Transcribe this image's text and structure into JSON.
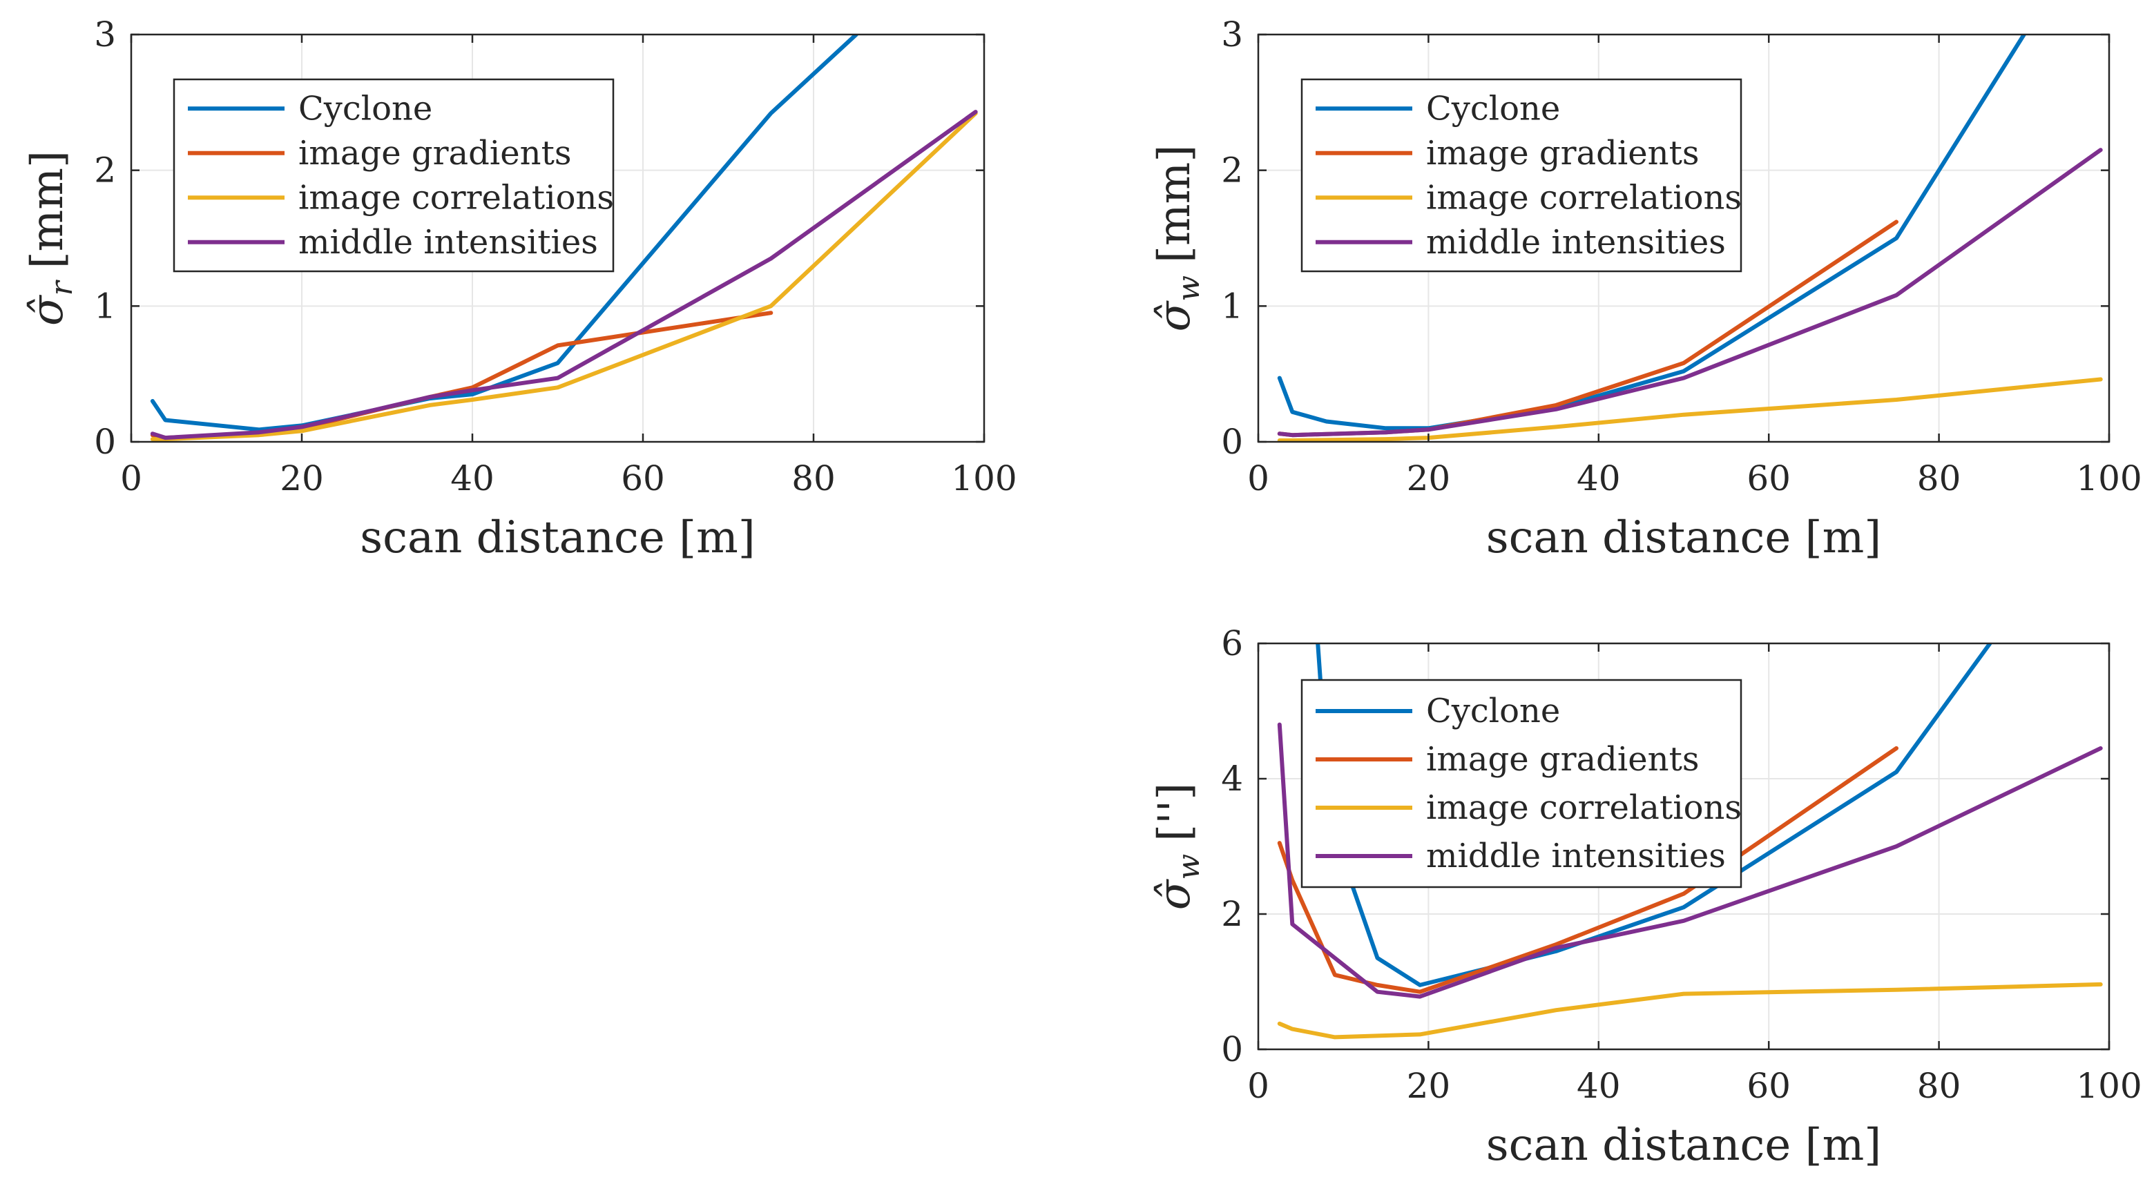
{
  "chart_data": [
    {
      "type": "line",
      "panel": "top-left",
      "xlabel": "scan distance [m]",
      "ylabel": "σ̂",
      "ylabel_sub": "r",
      "ylabel_unit": "[mm]",
      "xlim": [
        0,
        100
      ],
      "ylim": [
        0,
        3
      ],
      "xticks": [
        0,
        20,
        40,
        60,
        80,
        100
      ],
      "yticks": [
        0,
        1,
        2,
        3
      ],
      "grid": true,
      "legend_position": "top-left",
      "series": [
        {
          "name": "Cyclone",
          "color": "#0072BD",
          "x": [
            2.5,
            4,
            15,
            20,
            35,
            40,
            50,
            75,
            85
          ],
          "y": [
            0.3,
            0.16,
            0.09,
            0.12,
            0.32,
            0.35,
            0.58,
            2.42,
            3.0
          ]
        },
        {
          "name": "image gradients",
          "color": "#D95319",
          "x": [
            2.5,
            4,
            15,
            20,
            35,
            40,
            50,
            75
          ],
          "y": [
            0.05,
            0.03,
            0.06,
            0.1,
            0.33,
            0.4,
            0.71,
            0.95
          ]
        },
        {
          "name": "image correlations",
          "color": "#EDB120",
          "x": [
            2.5,
            4,
            15,
            20,
            35,
            40,
            50,
            75,
            99
          ],
          "y": [
            0.02,
            0.02,
            0.05,
            0.08,
            0.27,
            0.31,
            0.4,
            1.0,
            2.42
          ]
        },
        {
          "name": "middle intensities",
          "color": "#7E2F8E",
          "x": [
            2.5,
            4,
            15,
            20,
            35,
            40,
            50,
            75,
            99
          ],
          "y": [
            0.06,
            0.03,
            0.07,
            0.11,
            0.33,
            0.38,
            0.47,
            1.35,
            2.43
          ]
        }
      ]
    },
    {
      "type": "line",
      "panel": "top-right",
      "xlabel": "scan distance [m]",
      "ylabel": "σ̂",
      "ylabel_sub": "w",
      "ylabel_unit": "[mm]",
      "xlim": [
        0,
        100
      ],
      "ylim": [
        0,
        3
      ],
      "xticks": [
        0,
        20,
        40,
        60,
        80,
        100
      ],
      "yticks": [
        0,
        1,
        2,
        3
      ],
      "grid": true,
      "legend_position": "top-left",
      "series": [
        {
          "name": "Cyclone",
          "color": "#0072BD",
          "x": [
            2.5,
            4,
            8,
            15,
            20,
            35,
            50,
            75,
            90
          ],
          "y": [
            0.47,
            0.22,
            0.15,
            0.1,
            0.1,
            0.25,
            0.52,
            1.5,
            3.0
          ]
        },
        {
          "name": "image gradients",
          "color": "#D95319",
          "x": [
            2.5,
            4,
            15,
            20,
            35,
            50,
            75
          ],
          "y": [
            0.06,
            0.05,
            0.07,
            0.09,
            0.27,
            0.58,
            1.62
          ]
        },
        {
          "name": "image correlations",
          "color": "#EDB120",
          "x": [
            2.5,
            4,
            15,
            20,
            35,
            50,
            75,
            99
          ],
          "y": [
            0.01,
            0.01,
            0.02,
            0.03,
            0.11,
            0.2,
            0.31,
            0.46
          ]
        },
        {
          "name": "middle intensities",
          "color": "#7E2F8E",
          "x": [
            2.5,
            4,
            15,
            20,
            35,
            50,
            75,
            99
          ],
          "y": [
            0.06,
            0.05,
            0.07,
            0.09,
            0.24,
            0.47,
            1.08,
            2.15
          ]
        }
      ]
    },
    {
      "type": "line",
      "panel": "bottom-right",
      "xlabel": "scan distance [m]",
      "ylabel": "σ̂",
      "ylabel_sub": "w",
      "ylabel_unit": "['']",
      "xlim": [
        0,
        100
      ],
      "ylim": [
        0,
        6
      ],
      "xticks": [
        0,
        20,
        40,
        60,
        80,
        100
      ],
      "yticks": [
        0,
        2,
        4,
        6
      ],
      "grid": true,
      "legend_position": "top-left",
      "series": [
        {
          "name": "Cyclone",
          "color": "#0072BD",
          "x": [
            7,
            8,
            10,
            14,
            19,
            35,
            50,
            75,
            86
          ],
          "y": [
            6.0,
            4.2,
            2.8,
            1.35,
            0.95,
            1.45,
            2.1,
            4.1,
            6.0
          ]
        },
        {
          "name": "image gradients",
          "color": "#D95319",
          "x": [
            2.5,
            4,
            9,
            14,
            19,
            35,
            50,
            75
          ],
          "y": [
            3.05,
            2.5,
            1.1,
            0.95,
            0.85,
            1.55,
            2.3,
            4.45
          ]
        },
        {
          "name": "image correlations",
          "color": "#EDB120",
          "x": [
            2.5,
            4,
            9,
            14,
            19,
            35,
            50,
            75,
            99
          ],
          "y": [
            0.38,
            0.3,
            0.18,
            0.2,
            0.22,
            0.58,
            0.82,
            0.88,
            0.96
          ]
        },
        {
          "name": "middle intensities",
          "color": "#7E2F8E",
          "x": [
            2.5,
            4,
            9,
            14,
            19,
            35,
            50,
            75,
            99
          ],
          "y": [
            4.8,
            1.85,
            1.35,
            0.85,
            0.78,
            1.5,
            1.9,
            3.0,
            4.45
          ]
        }
      ]
    }
  ]
}
